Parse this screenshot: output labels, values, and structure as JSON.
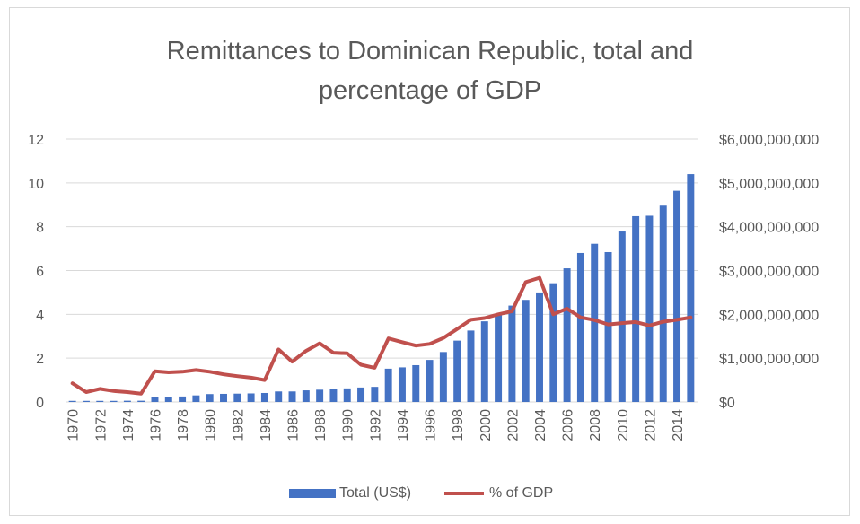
{
  "chart_data": {
    "type": "bar",
    "title_line1": "Remittances to Dominican Republic, total and",
    "title_line2": "percentage of GDP",
    "x": [
      "1970",
      "1971",
      "1972",
      "1973",
      "1974",
      "1975",
      "1976",
      "1977",
      "1978",
      "1979",
      "1980",
      "1981",
      "1982",
      "1983",
      "1984",
      "1985",
      "1986",
      "1987",
      "1988",
      "1989",
      "1990",
      "1991",
      "1992",
      "1993",
      "1994",
      "1995",
      "1996",
      "1997",
      "1998",
      "1999",
      "2000",
      "2001",
      "2002",
      "2003",
      "2004",
      "2005",
      "2006",
      "2007",
      "2008",
      "2009",
      "2010",
      "2011",
      "2012",
      "2013",
      "2014",
      "2015"
    ],
    "x_tick_labels": [
      "1970",
      "1972",
      "1974",
      "1976",
      "1978",
      "1980",
      "1982",
      "1984",
      "1986",
      "1988",
      "1990",
      "1992",
      "1994",
      "1996",
      "1998",
      "2000",
      "2002",
      "2004",
      "2006",
      "2008",
      "2010",
      "2012",
      "2014"
    ],
    "series": [
      {
        "name": "Total (US$)",
        "type": "bar",
        "axis": "right",
        "color": "#4472c4",
        "values": [
          25000000,
          25000000,
          25000000,
          25000000,
          28000000,
          28000000,
          110000000,
          120000000,
          125000000,
          150000000,
          180000000,
          185000000,
          190000000,
          195000000,
          205000000,
          240000000,
          240000000,
          265000000,
          280000000,
          295000000,
          310000000,
          330000000,
          345000000,
          760000000,
          790000000,
          840000000,
          960000000,
          1140000000,
          1400000000,
          1630000000,
          1840000000,
          1980000000,
          2200000000,
          2330000000,
          2500000000,
          2710000000,
          3050000000,
          3400000000,
          3610000000,
          3420000000,
          3890000000,
          4240000000,
          4250000000,
          4480000000,
          4820000000,
          5200000000
        ]
      },
      {
        "name": "% of GDP",
        "type": "line",
        "axis": "left",
        "color": "#c0504d",
        "values": [
          0.85,
          0.45,
          0.6,
          0.5,
          0.45,
          0.38,
          1.4,
          1.35,
          1.38,
          1.46,
          1.38,
          1.26,
          1.18,
          1.11,
          1.0,
          2.4,
          1.84,
          2.33,
          2.68,
          2.25,
          2.22,
          1.7,
          1.56,
          2.9,
          2.73,
          2.57,
          2.65,
          2.92,
          3.33,
          3.75,
          3.83,
          4.0,
          4.14,
          5.47,
          5.67,
          4.0,
          4.26,
          3.86,
          3.74,
          3.54,
          3.6,
          3.65,
          3.49,
          3.66,
          3.75,
          3.86
        ]
      }
    ],
    "y_left": {
      "ylim": [
        0,
        12
      ],
      "ticks": [
        "0",
        "2",
        "4",
        "6",
        "8",
        "10",
        "12"
      ]
    },
    "y_right": {
      "ylim": [
        0,
        6000000000
      ],
      "ticks": [
        "$0",
        "$1,000,000,000",
        "$2,000,000,000",
        "$3,000,000,000",
        "$4,000,000,000",
        "$5,000,000,000",
        "$6,000,000,000"
      ]
    },
    "grid": true,
    "legend_position": "bottom"
  }
}
